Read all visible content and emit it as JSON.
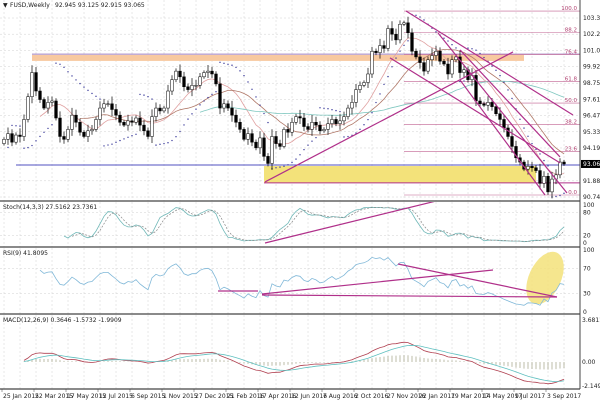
{
  "header": {
    "icon": "triangle-down-icon",
    "symbol_label": "FUSD,Weekly",
    "ohlc": "92.945 93.125 92.915 93.065"
  },
  "indicators": {
    "stoch_label": "Stoch(14,3,3) 27.5162 23.7361",
    "rsi_label": "RSI(9) 41.8095",
    "macd_label": "MACD(12,26,9) 0.3646 -1.5732 -1.9909"
  },
  "colors": {
    "bull": "#ffffff",
    "bear": "#000000",
    "ma_fast": "#e0a0a0",
    "ma_mid": "#b07868",
    "ma_slow": "#80c8c0",
    "sar": "#3a3a9a",
    "trend": "#b0308a",
    "yellow_zone": "#f3e27a",
    "orange_zone": "#f8c9a0",
    "blue_line": "#5050c0",
    "stoch_main": "#70b8b8",
    "stoch_signal": "#888888",
    "rsi": "#80b8d8",
    "macd_hist": "#909070",
    "macd_main": "#b04050",
    "macd_signal": "#60c0c0"
  },
  "chart_data": {
    "type": "candlestick",
    "title": "FUSD,Weekly",
    "x_unit": "week index from 25 Jan 2015",
    "closes": [
      94.8,
      95.2,
      94.6,
      95.1,
      95.0,
      96.2,
      97.8,
      99.5,
      98.2,
      97.6,
      97.0,
      97.4,
      97.5,
      96.3,
      95.0,
      94.8,
      95.5,
      96.5,
      96.0,
      95.3,
      95.0,
      95.4,
      95.5,
      96.2,
      97.0,
      97.3,
      97.3,
      96.9,
      96.5,
      96.0,
      95.8,
      96.1,
      96.0,
      96.3,
      95.8,
      95.4,
      95.0,
      96.4,
      97.0,
      96.8,
      97.0,
      98.2,
      99.0,
      99.6,
      99.2,
      98.5,
      98.3,
      98.6,
      98.6,
      99.2,
      99.5,
      99.6,
      99.4,
      98.7,
      97.0,
      97.3,
      97.0,
      96.5,
      96.0,
      95.5,
      94.8,
      95.2,
      94.6,
      94.2,
      94.9,
      93.6,
      93.1,
      95.0,
      94.5,
      94.3,
      95.5,
      95.3,
      96.0,
      96.4,
      96.3,
      95.7,
      95.5,
      96.0,
      95.8,
      95.4,
      95.5,
      95.9,
      96.2,
      95.9,
      96.1,
      96.4,
      97.0,
      97.4,
      98.3,
      98.6,
      98.8,
      99.4,
      101.0,
      100.9,
      101.4,
      101.2,
      102.6,
      102.2,
      101.8,
      102.9,
      103.0,
      102.3,
      101.0,
      100.6,
      100.2,
      99.6,
      100.4,
      100.7,
      101.0,
      100.3,
      100.1,
      99.4,
      100.4,
      100.6,
      99.5,
      99.7,
      99.0,
      99.3,
      97.5,
      97.3,
      97.2,
      97.4,
      97.1,
      96.6,
      96.2,
      95.6,
      95.0,
      94.3,
      93.5,
      93.2,
      92.7,
      92.9,
      92.8,
      92.6,
      91.7,
      92.2,
      91.1,
      92.0,
      92.3,
      93.2,
      93.065
    ],
    "last_price": "93.065",
    "price_axis": [
      "103.340",
      "102.200",
      "101.060",
      "99.920",
      "98.750",
      "97.610",
      "96.470",
      "95.330",
      "94.190",
      "91.880",
      "90.740"
    ],
    "ylim": [
      90.74,
      103.34
    ],
    "date_labels": [
      {
        "w": 0,
        "t": "25 Jan 2015"
      },
      {
        "w": 8,
        "t": "22 Mar 2015"
      },
      {
        "w": 16,
        "t": "17 May 2015"
      },
      {
        "w": 24,
        "t": "12 Jul 2015"
      },
      {
        "w": 32,
        "t": "6 Sep 2015"
      },
      {
        "w": 40,
        "t": "1 Nov 2015"
      },
      {
        "w": 48,
        "t": "27 Dec 2015"
      },
      {
        "w": 56,
        "t": "21 Feb 2016"
      },
      {
        "w": 64,
        "t": "17 Apr 2016"
      },
      {
        "w": 72,
        "t": "12 Jun 2016"
      },
      {
        "w": 80,
        "t": "7 Aug 2016"
      },
      {
        "w": 88,
        "t": "2 Oct 2016"
      },
      {
        "w": 96,
        "t": "27 Nov 2016"
      },
      {
        "w": 104,
        "t": "22 Jan 2017"
      },
      {
        "w": 112,
        "t": "19 Mar 2017"
      },
      {
        "w": 120,
        "t": "14 May 2017"
      },
      {
        "w": 128,
        "t": "9 Jul 2017"
      },
      {
        "w": 136,
        "t": "3 Sep 2017"
      }
    ],
    "moving_averages": [
      10,
      20,
      50
    ],
    "fibonacci": {
      "high": 103.83,
      "low": 90.88,
      "start_week": 100,
      "levels": [
        "100.0",
        "88.2",
        "76.4",
        "61.8",
        "50.0",
        "38.2",
        "23.6",
        "0.0"
      ]
    },
    "zones": [
      {
        "name": "orange-resistance-zone",
        "from_w": 7,
        "to_w": 130,
        "p1": 100.32,
        "p2": 100.74,
        "color": "#f8c9a0"
      },
      {
        "name": "yellow-support-zone",
        "from_w": 65,
        "to_w": 133,
        "p1": 91.73,
        "p2": 92.92,
        "color": "#f3e27a"
      }
    ],
    "hlines": [
      {
        "name": "resistance-line",
        "from_w": 7,
        "p": 100.8,
        "color": "#a080c0"
      },
      {
        "name": "support-blue-line",
        "from_w": 3,
        "p": 92.99,
        "color": "#5050c0"
      },
      {
        "name": "support-pink-line",
        "from_w": 65,
        "p": 91.73,
        "color": "#b0308a"
      }
    ],
    "trendlines": [
      [
        100.5,
        103.83,
        142.25,
        96.51
      ],
      [
        65.25,
        91.8,
        127.25,
        100.95
      ],
      [
        96.5,
        100.53,
        139,
        93.14
      ],
      [
        108.5,
        102.28,
        140.75,
        91.02
      ],
      [
        114,
        98.98,
        135.25,
        90.88
      ],
      [
        114,
        101.09,
        139,
        93.56
      ]
    ],
    "stoch_axis": [
      "100",
      "80",
      "20",
      "0"
    ],
    "stoch_trendlines": [
      [
        65.25,
        0,
        109,
        113
      ]
    ],
    "rsi_axis": [
      "100",
      "70",
      "30",
      "0"
    ],
    "rsi_trendlines": [
      [
        53.5,
        33.9,
        63.5,
        33.9
      ],
      [
        64.5,
        29,
        122.25,
        67.7
      ],
      [
        64.5,
        27.4,
        138.25,
        24.2
      ],
      [
        98.5,
        77.4,
        138.25,
        24.2
      ]
    ],
    "rsi_highlight": {
      "w": 135.25,
      "v": 54.8
    },
    "macd_axis": [
      "3.6811",
      "0.00",
      "-2.1495"
    ]
  }
}
